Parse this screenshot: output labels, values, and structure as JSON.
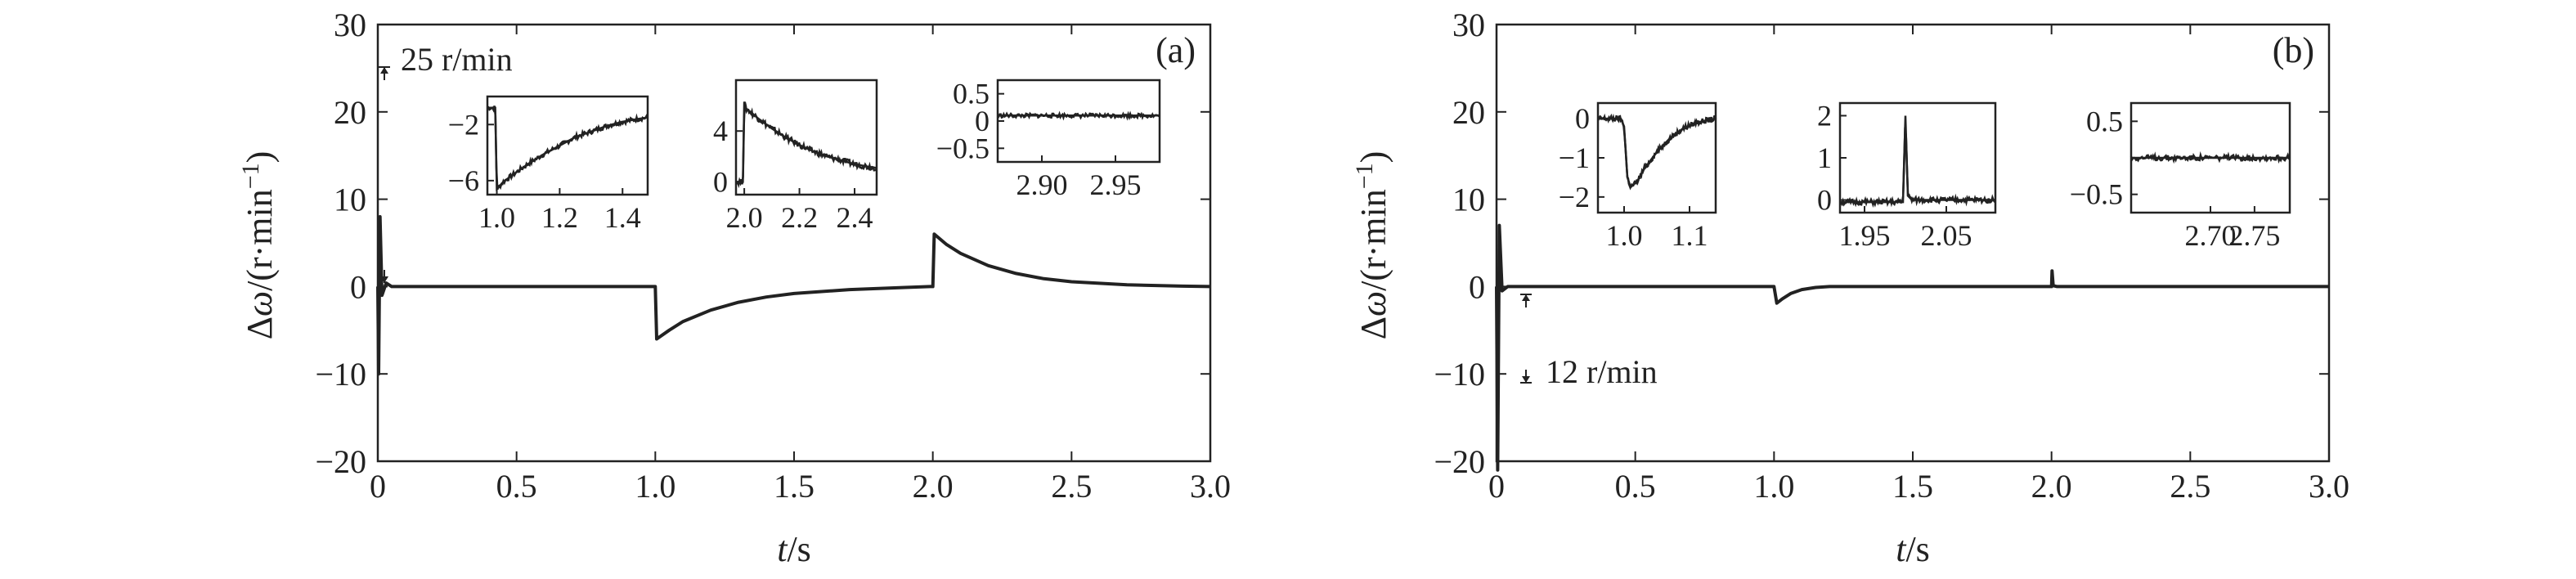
{
  "chart_data": [
    {
      "type": "line",
      "panel_label": "(a)",
      "xlabel_var": "t",
      "xlabel_unit": "/s",
      "ylabel_var": "Δω",
      "ylabel_unit": "/(r·min",
      "ylabel_exp": "−1",
      "ylabel_close": ")",
      "xlim": [
        0,
        3.0
      ],
      "ylim": [
        -20,
        30
      ],
      "xticks": [
        "0",
        "0.5",
        "1.0",
        "1.5",
        "2.0",
        "2.5",
        "3.0"
      ],
      "yticks": [
        "−20",
        "−10",
        "0",
        "10",
        "20",
        "30"
      ],
      "annotation": "25 r/min",
      "series": [
        {
          "x": [
            0,
            0.003,
            0.008,
            0.015,
            0.03,
            0.05,
            0.99,
            1.0,
            1.005,
            1.05,
            1.1,
            1.2,
            1.3,
            1.4,
            1.5,
            1.7,
            1.9,
            1.99,
            2.0,
            2.005,
            2.05,
            2.1,
            2.2,
            2.3,
            2.4,
            2.5,
            2.7,
            2.9,
            3.0
          ],
          "y": [
            0,
            -10,
            8,
            -1,
            0.4,
            0,
            0,
            0,
            -6.0,
            -5.0,
            -4.0,
            -2.7,
            -1.8,
            -1.2,
            -0.8,
            -0.35,
            -0.1,
            0,
            0,
            6.0,
            4.8,
            3.8,
            2.4,
            1.5,
            0.9,
            0.55,
            0.2,
            0.05,
            0
          ]
        }
      ],
      "insets": [
        {
          "xlim": [
            0.97,
            1.48
          ],
          "ylim": [
            -7,
            0
          ],
          "xticks": [
            "1.0",
            "1.2",
            "1.4"
          ],
          "yticks": [
            "−6",
            "−2"
          ],
          "x": [
            0.97,
            0.995,
            1.0,
            1.005,
            1.02,
            1.05,
            1.1,
            1.15,
            1.2,
            1.25,
            1.3,
            1.35,
            1.4,
            1.45,
            1.48
          ],
          "y": [
            -0.8,
            -0.8,
            -6.6,
            -6.5,
            -6.1,
            -5.6,
            -4.8,
            -4.1,
            -3.5,
            -2.9,
            -2.5,
            -2.1,
            -1.8,
            -1.6,
            -1.5
          ]
        },
        {
          "xlim": [
            1.97,
            2.48
          ],
          "ylim": [
            -1,
            8
          ],
          "xticks": [
            "2.0",
            "2.2",
            "2.4"
          ],
          "yticks": [
            "0",
            "4"
          ],
          "x": [
            1.97,
            1.995,
            2.0,
            2.005,
            2.05,
            2.1,
            2.15,
            2.2,
            2.25,
            2.3,
            2.35,
            2.4,
            2.45,
            2.48
          ],
          "y": [
            0,
            0,
            6.3,
            5.8,
            5.0,
            4.2,
            3.5,
            2.9,
            2.4,
            2.0,
            1.7,
            1.4,
            1.2,
            1.1
          ]
        },
        {
          "xlim": [
            2.87,
            2.98
          ],
          "ylim": [
            -0.75,
            0.75
          ],
          "xticks": [
            "2.90",
            "2.95"
          ],
          "yticks": [
            "0.5",
            "0",
            "−0.5"
          ],
          "x": [
            2.87,
            2.98
          ],
          "y": [
            0.1,
            0.1
          ]
        }
      ]
    },
    {
      "type": "line",
      "panel_label": "(b)",
      "xlabel_var": "t",
      "xlabel_unit": "/s",
      "ylabel_var": "Δω",
      "ylabel_unit": "/(r·min",
      "ylabel_exp": "−1",
      "ylabel_close": ")",
      "xlim": [
        0,
        3.0
      ],
      "ylim": [
        -20,
        30
      ],
      "xticks": [
        "0",
        "0.5",
        "1.0",
        "1.5",
        "2.0",
        "2.5",
        "3.0"
      ],
      "yticks": [
        "−20",
        "−10",
        "0",
        "10",
        "20",
        "30"
      ],
      "annotation": "12 r/min",
      "series": [
        {
          "x": [
            0,
            0.004,
            0.01,
            0.02,
            0.04,
            0.99,
            1.0,
            1.01,
            1.03,
            1.06,
            1.1,
            1.15,
            1.2,
            1.99,
            2.0,
            2.002,
            2.006,
            2.02,
            3.0
          ],
          "y": [
            0,
            -21,
            7,
            -0.5,
            0,
            0,
            0,
            -1.9,
            -1.4,
            -0.8,
            -0.35,
            -0.1,
            0,
            0,
            0,
            1.8,
            0.1,
            0,
            0
          ]
        }
      ],
      "insets": [
        {
          "xlim": [
            0.96,
            1.14
          ],
          "ylim": [
            -2.4,
            0.4
          ],
          "xticks": [
            "1.0",
            "1.1"
          ],
          "yticks": [
            "0",
            "−1",
            "−2"
          ],
          "x": [
            0.96,
            0.995,
            1.0,
            1.005,
            1.01,
            1.02,
            1.03,
            1.05,
            1.07,
            1.09,
            1.11,
            1.14
          ],
          "y": [
            0,
            0,
            -0.2,
            -1.5,
            -1.75,
            -1.6,
            -1.3,
            -0.85,
            -0.5,
            -0.25,
            -0.1,
            0
          ]
        },
        {
          "xlim": [
            1.92,
            2.11
          ],
          "ylim": [
            -0.3,
            2.3
          ],
          "xticks": [
            "1.95",
            "2.05"
          ],
          "yticks": [
            "2",
            "1",
            "0"
          ],
          "x": [
            1.92,
            1.997,
            2.0,
            2.003,
            2.008,
            2.11
          ],
          "y": [
            -0.05,
            -0.05,
            2.0,
            0.1,
            0.0,
            0.0
          ]
        },
        {
          "xlim": [
            2.61,
            2.79
          ],
          "ylim": [
            -0.75,
            0.75
          ],
          "xticks": [
            "2.70",
            "2.75"
          ],
          "yticks": [
            "0.5",
            "−0.5"
          ],
          "x": [
            2.61,
            2.79
          ],
          "y": [
            0,
            0
          ]
        }
      ]
    }
  ]
}
